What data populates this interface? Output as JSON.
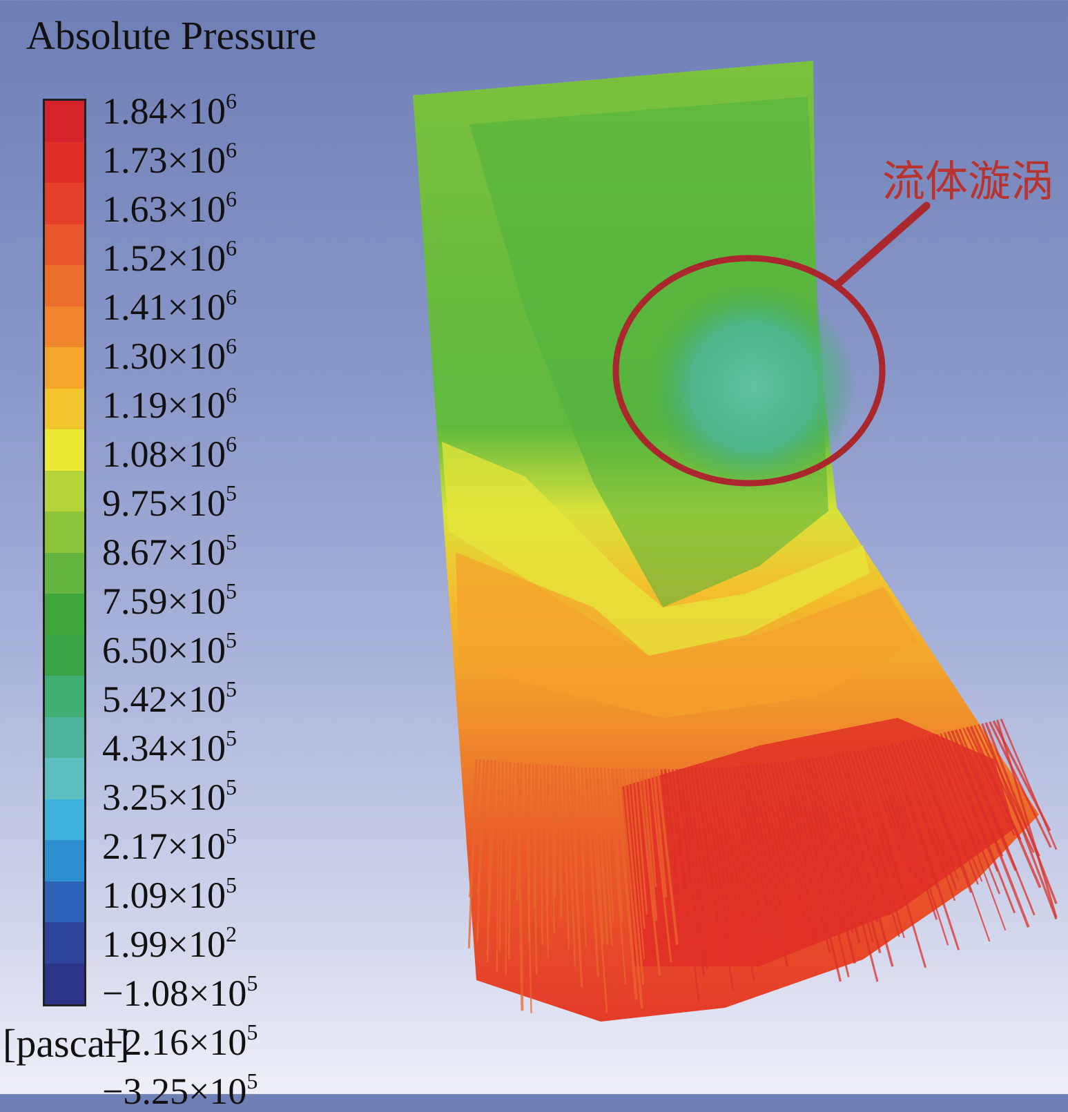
{
  "legend": {
    "title": "Absolute Pressure",
    "unit": "[pascal]",
    "ticks": [
      {
        "m": "1.84×10",
        "e": "6"
      },
      {
        "m": "1.73×10",
        "e": "6"
      },
      {
        "m": "1.63×10",
        "e": "6"
      },
      {
        "m": "1.52×10",
        "e": "6"
      },
      {
        "m": "1.41×10",
        "e": "6"
      },
      {
        "m": "1.30×10",
        "e": "6"
      },
      {
        "m": "1.19×10",
        "e": "6"
      },
      {
        "m": "1.08×10",
        "e": "6"
      },
      {
        "m": "9.75×10",
        "e": "5"
      },
      {
        "m": "8.67×10",
        "e": "5"
      },
      {
        "m": "7.59×10",
        "e": "5"
      },
      {
        "m": "6.50×10",
        "e": "5"
      },
      {
        "m": "5.42×10",
        "e": "5"
      },
      {
        "m": "4.34×10",
        "e": "5"
      },
      {
        "m": "3.25×10",
        "e": "5"
      },
      {
        "m": "2.17×10",
        "e": "5"
      },
      {
        "m": "1.09×10",
        "e": "5"
      },
      {
        "m": "1.99×10",
        "e": "2"
      },
      {
        "m": "−1.08×10",
        "e": "5"
      },
      {
        "m": "−2.16×10",
        "e": "5"
      },
      {
        "m": "−3.25×10",
        "e": "5"
      }
    ],
    "band_colors": [
      "#d4232b",
      "#df2e28",
      "#e4402a",
      "#e8562c",
      "#ec6e2c",
      "#ef862c",
      "#f3a52a",
      "#f2c42e",
      "#ecea34",
      "#b4d43a",
      "#8cc43c",
      "#63b440",
      "#3fa63c",
      "#3aa446",
      "#40ad72",
      "#4db39a",
      "#5dbfc0",
      "#3fb3dd",
      "#2e8fd0",
      "#2c63b6",
      "#2e449b",
      "#2c3488"
    ]
  },
  "annotation": {
    "label": "流体漩涡",
    "color": "#b8332e"
  }
}
